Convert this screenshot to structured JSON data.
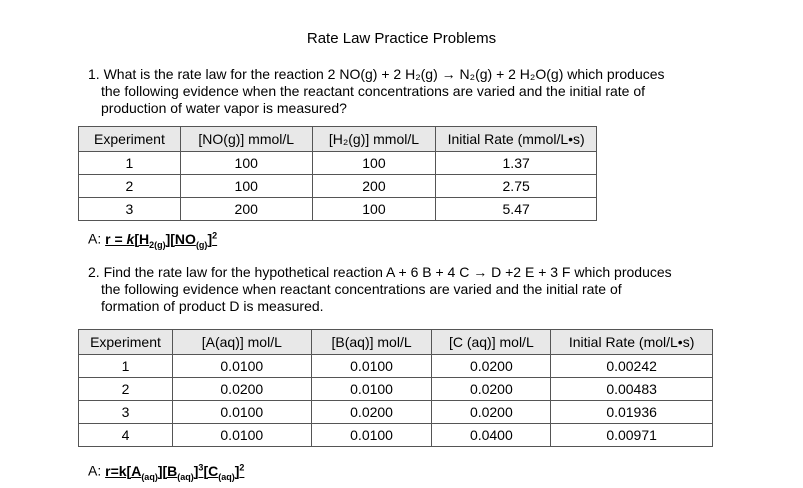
{
  "title": "Rate Law Practice Problems",
  "question_1": {
    "lines": [
      "1. What is the rate law for the reaction 2 NO(g) + 2 H₂(g) → N₂(g) + 2 H₂O(g) which produces",
      "the following evidence when the reactant concentrations are varied and the initial rate of",
      "production of water vapor is measured?"
    ]
  },
  "table_1": {
    "header": [
      "Experiment",
      "[NO(g)] mmol/L",
      "[H₂(g)] mmol/L",
      "Initial Rate (mmol/L•s)"
    ],
    "rows": [
      [
        "1",
        "100",
        "100",
        "1.37"
      ],
      [
        "2",
        "100",
        "200",
        "2.75"
      ],
      [
        "3",
        "200",
        "100",
        "5.47"
      ]
    ]
  },
  "answer_1": {
    "label": "A:",
    "parts": [
      "r = ",
      "k",
      "[H",
      "2(g)",
      "][NO",
      "(g)",
      "]",
      "2"
    ]
  },
  "question_2": {
    "lines": [
      "2.  Find the rate law for the hypothetical reaction A + 6 B + 4 C → D +2 E + 3 F which produces",
      "the following evidence when reactant concentrations are varied and the initial rate of",
      "formation of product D is measured."
    ]
  },
  "table_2": {
    "header": [
      "Experiment",
      "[A(aq)] mol/L",
      "[B(aq)] mol/L",
      "[C (aq)] mol/L",
      "Initial Rate (mol/L•s)"
    ],
    "rows": [
      [
        "1",
        "0.0100",
        "0.0100",
        "0.0200",
        "0.00242"
      ],
      [
        "2",
        "0.0200",
        "0.0100",
        "0.0200",
        "0.00483"
      ],
      [
        "3",
        "0.0100",
        "0.0200",
        "0.0200",
        "0.01936"
      ],
      [
        "4",
        "0.0100",
        "0.0100",
        "0.0400",
        "0.00971"
      ]
    ]
  },
  "answer_2": {
    "label": "A:",
    "parts": [
      "r=k[A",
      "(aq)",
      "][B",
      "(aq)",
      "]",
      "3",
      "[C",
      "(aq)",
      "]",
      "2"
    ]
  }
}
